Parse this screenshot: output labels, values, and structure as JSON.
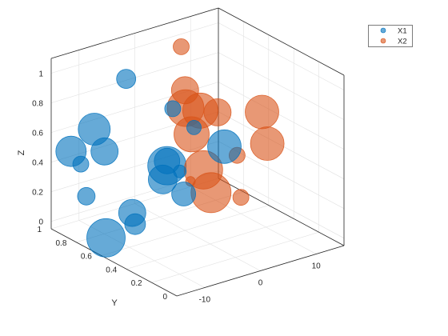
{
  "chart_data": {
    "type": "scatter",
    "subtype": "bubble-3d",
    "title": "",
    "xlabel": "",
    "ylabel": "Y",
    "zlabel": "Z",
    "xlim": [
      -15,
      15
    ],
    "ylim": [
      0,
      1
    ],
    "zlim": [
      -0.05,
      1.1
    ],
    "x_ticks": [
      "-10",
      "0",
      "10"
    ],
    "y_ticks": [
      "0",
      "0.2",
      "0.4",
      "0.6",
      "0.8",
      "1"
    ],
    "z_ticks": [
      "0",
      "0.2",
      "0.4",
      "0.6",
      "0.8",
      "1"
    ],
    "grid": true,
    "legend_position": "top-right",
    "series": [
      {
        "name": "X1",
        "color": "#0072BD",
        "points": [
          {
            "x": -13.5,
            "y": 0.63,
            "z": 0.04,
            "size": 24
          },
          {
            "x": -8.5,
            "y": 0.62,
            "z": 0.08,
            "size": 13
          },
          {
            "x": -11.5,
            "y": 0.51,
            "z": 0.24,
            "size": 17
          },
          {
            "x": -13.2,
            "y": 0.8,
            "z": 0.24,
            "size": 11
          },
          {
            "x": -13.3,
            "y": 0.84,
            "z": 0.44,
            "size": 10
          },
          {
            "x": -15.5,
            "y": 0.82,
            "z": 0.56,
            "size": 19
          },
          {
            "x": -8.8,
            "y": 0.85,
            "z": 0.47,
            "size": 17
          },
          {
            "x": -8.4,
            "y": 0.95,
            "z": 0.57,
            "size": 20
          },
          {
            "x": -4.0,
            "y": 0.6,
            "z": 0.34,
            "size": 18
          },
          {
            "x": -2.8,
            "y": 0.62,
            "z": 0.41,
            "size": 24
          },
          {
            "x": -2.5,
            "y": 0.5,
            "z": 0.27,
            "size": 15
          },
          {
            "x": -2.0,
            "y": 0.44,
            "z": 0.74,
            "size": 9
          },
          {
            "x": -14.5,
            "y": 0.1,
            "z": 0.81,
            "size": 16
          },
          {
            "x": -14.0,
            "y": 0.02,
            "z": 0.77,
            "size": 8
          },
          {
            "x": -4.2,
            "y": 0.1,
            "z": 0.79,
            "size": 21
          },
          {
            "x": -3.8,
            "y": 0.9,
            "z": 0.88,
            "size": 12
          },
          {
            "x": -7.4,
            "y": 0.37,
            "z": 0.96,
            "size": 10
          }
        ]
      },
      {
        "name": "X2",
        "color": "#D95319",
        "points": [
          {
            "x": 7.6,
            "y": 0.73,
            "z": 0.06,
            "size": 25
          },
          {
            "x": 11.6,
            "y": 0.67,
            "z": 0.01,
            "size": 10
          },
          {
            "x": 11.6,
            "y": 0.7,
            "z": 0.28,
            "size": 10
          },
          {
            "x": 2.4,
            "y": 0.56,
            "z": 0.35,
            "size": 24
          },
          {
            "x": 6.8,
            "y": 0.78,
            "z": 0.6,
            "size": 22
          },
          {
            "x": 2.3,
            "y": 0.65,
            "z": 0.55,
            "size": 22
          },
          {
            "x": 2.8,
            "y": 0.72,
            "z": 0.69,
            "size": 23
          },
          {
            "x": 1.8,
            "y": 0.68,
            "z": 0.84,
            "size": 17
          },
          {
            "x": 12.5,
            "y": 0.5,
            "z": 0.44,
            "size": 21
          },
          {
            "x": 12.0,
            "y": 0.52,
            "z": 0.65,
            "size": 21
          },
          {
            "x": 6.5,
            "y": 0.63,
            "z": 0.66,
            "size": 17
          },
          {
            "x": 7.2,
            "y": 0.95,
            "z": 0.95,
            "size": 10
          },
          {
            "x": -0.6,
            "y": 0.53,
            "z": 0.32,
            "size": 6
          }
        ]
      }
    ]
  }
}
